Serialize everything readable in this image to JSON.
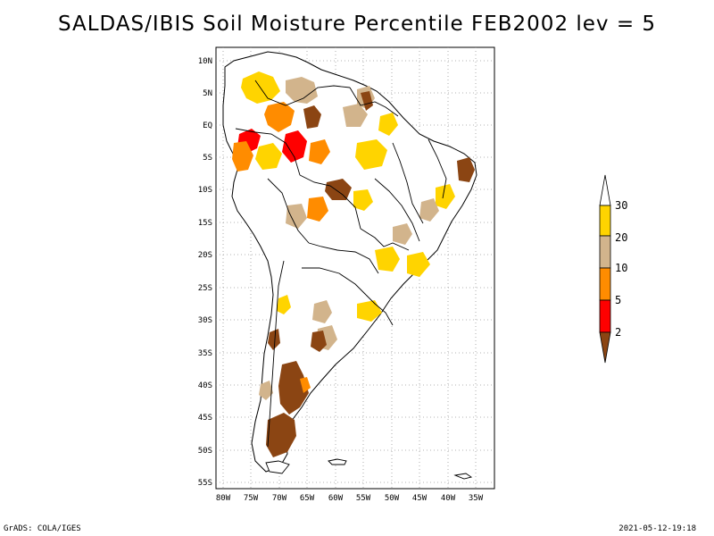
{
  "title": "SALDAS/IBIS Soil Moisture Percentile FEB2002 lev = 5",
  "footer": {
    "left": "GrADS: COLA/IGES",
    "right": "2021-05-12-19:18"
  },
  "lat_ticks": [
    "10N",
    "5N",
    "EQ",
    "5S",
    "10S",
    "15S",
    "20S",
    "25S",
    "30S",
    "35S",
    "40S",
    "45S",
    "50S",
    "55S"
  ],
  "lon_ticks": [
    "80W",
    "75W",
    "70W",
    "65W",
    "60W",
    "55W",
    "50W",
    "45W",
    "40W",
    "35W"
  ],
  "colorbar": {
    "labels": [
      "30",
      "20",
      "10",
      "5",
      "2"
    ],
    "colors": {
      "above_30": "#ffffff",
      "c20_30": "#ffd400",
      "c10_20": "#d2b48c",
      "c5_10": "#ff8c00",
      "c2_5": "#ff0000",
      "below_2": "#8b4513"
    }
  }
}
